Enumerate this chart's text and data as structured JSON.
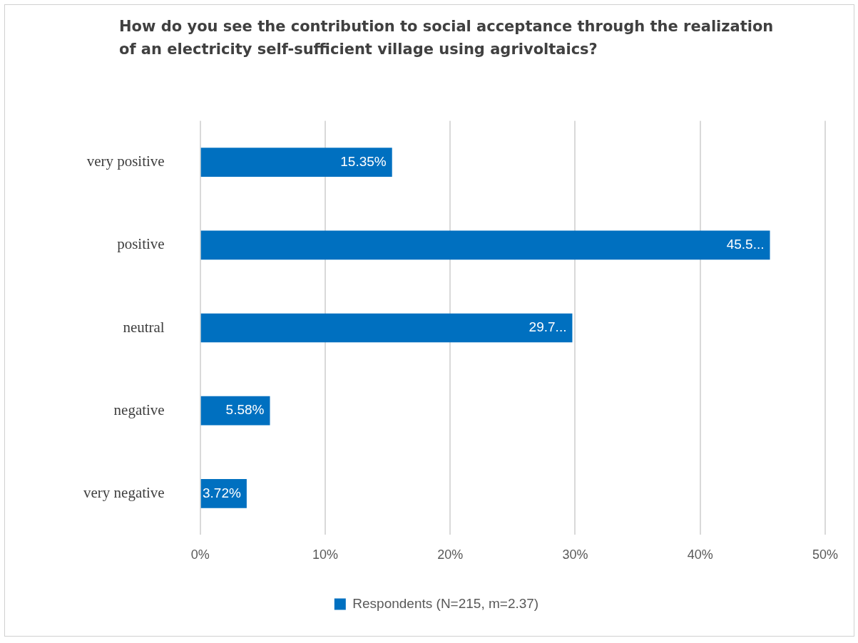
{
  "chart_data": {
    "type": "bar",
    "orientation": "horizontal",
    "title": "How do you see the contribution to social acceptance through the realization of an electricity self-sufficient village using agrivoltaics?",
    "categories": [
      "very positive",
      "positive",
      "neutral",
      "negative",
      "very negative"
    ],
    "series": [
      {
        "name": "Respondents (N=215, m=2.37)",
        "color": "#0070c0",
        "values": [
          15.35,
          45.58,
          29.77,
          5.58,
          3.72
        ],
        "value_labels": [
          "15.35%",
          "45.5...",
          "29.7...",
          "5.58%",
          "3.72%"
        ]
      }
    ],
    "xlim": [
      0,
      50
    ],
    "xticks": [
      {
        "value": 0,
        "label": "0%"
      },
      {
        "value": 10,
        "label": "10%"
      },
      {
        "value": 20,
        "label": "20%"
      },
      {
        "value": 30,
        "label": "30%"
      },
      {
        "value": 40,
        "label": "40%"
      },
      {
        "value": 50,
        "label": "50%"
      }
    ],
    "grid": "x",
    "legend": "bottom"
  }
}
